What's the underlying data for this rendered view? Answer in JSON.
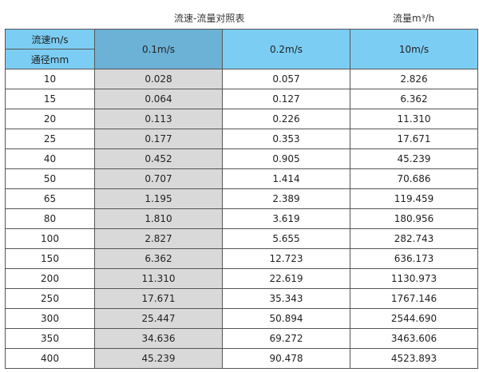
{
  "title": "流速-流量对照表",
  "unit_label": "流量m³/h",
  "header": {
    "velocity_label": "流速m/s",
    "diameter_label": "通径mm",
    "columns": [
      "0.1m/s",
      "0.2m/s",
      "10m/s"
    ]
  },
  "colors": {
    "header": "#7ccdf4",
    "header_highlight": "#6cb1d6",
    "column_highlight": "#d9d9d9"
  },
  "rows": [
    [
      "10",
      "0.028",
      "0.057",
      "2.826"
    ],
    [
      "15",
      "0.064",
      "0.127",
      "6.362"
    ],
    [
      "20",
      "0.113",
      "0.226",
      "11.310"
    ],
    [
      "25",
      "0.177",
      "0.353",
      "17.671"
    ],
    [
      "40",
      "0.452",
      "0.905",
      "45.239"
    ],
    [
      "50",
      "0.707",
      "1.414",
      "70.686"
    ],
    [
      "65",
      "1.195",
      "2.389",
      "119.459"
    ],
    [
      "80",
      "1.810",
      "3.619",
      "180.956"
    ],
    [
      "100",
      "2.827",
      "5.655",
      "282.743"
    ],
    [
      "150",
      "6.362",
      "12.723",
      "636.173"
    ],
    [
      "200",
      "11.310",
      "22.619",
      "1130.973"
    ],
    [
      "250",
      "17.671",
      "35.343",
      "1767.146"
    ],
    [
      "300",
      "25.447",
      "50.894",
      "2544.690"
    ],
    [
      "350",
      "34.636",
      "69.272",
      "3463.606"
    ],
    [
      "400",
      "45.239",
      "90.478",
      "4523.893"
    ]
  ]
}
